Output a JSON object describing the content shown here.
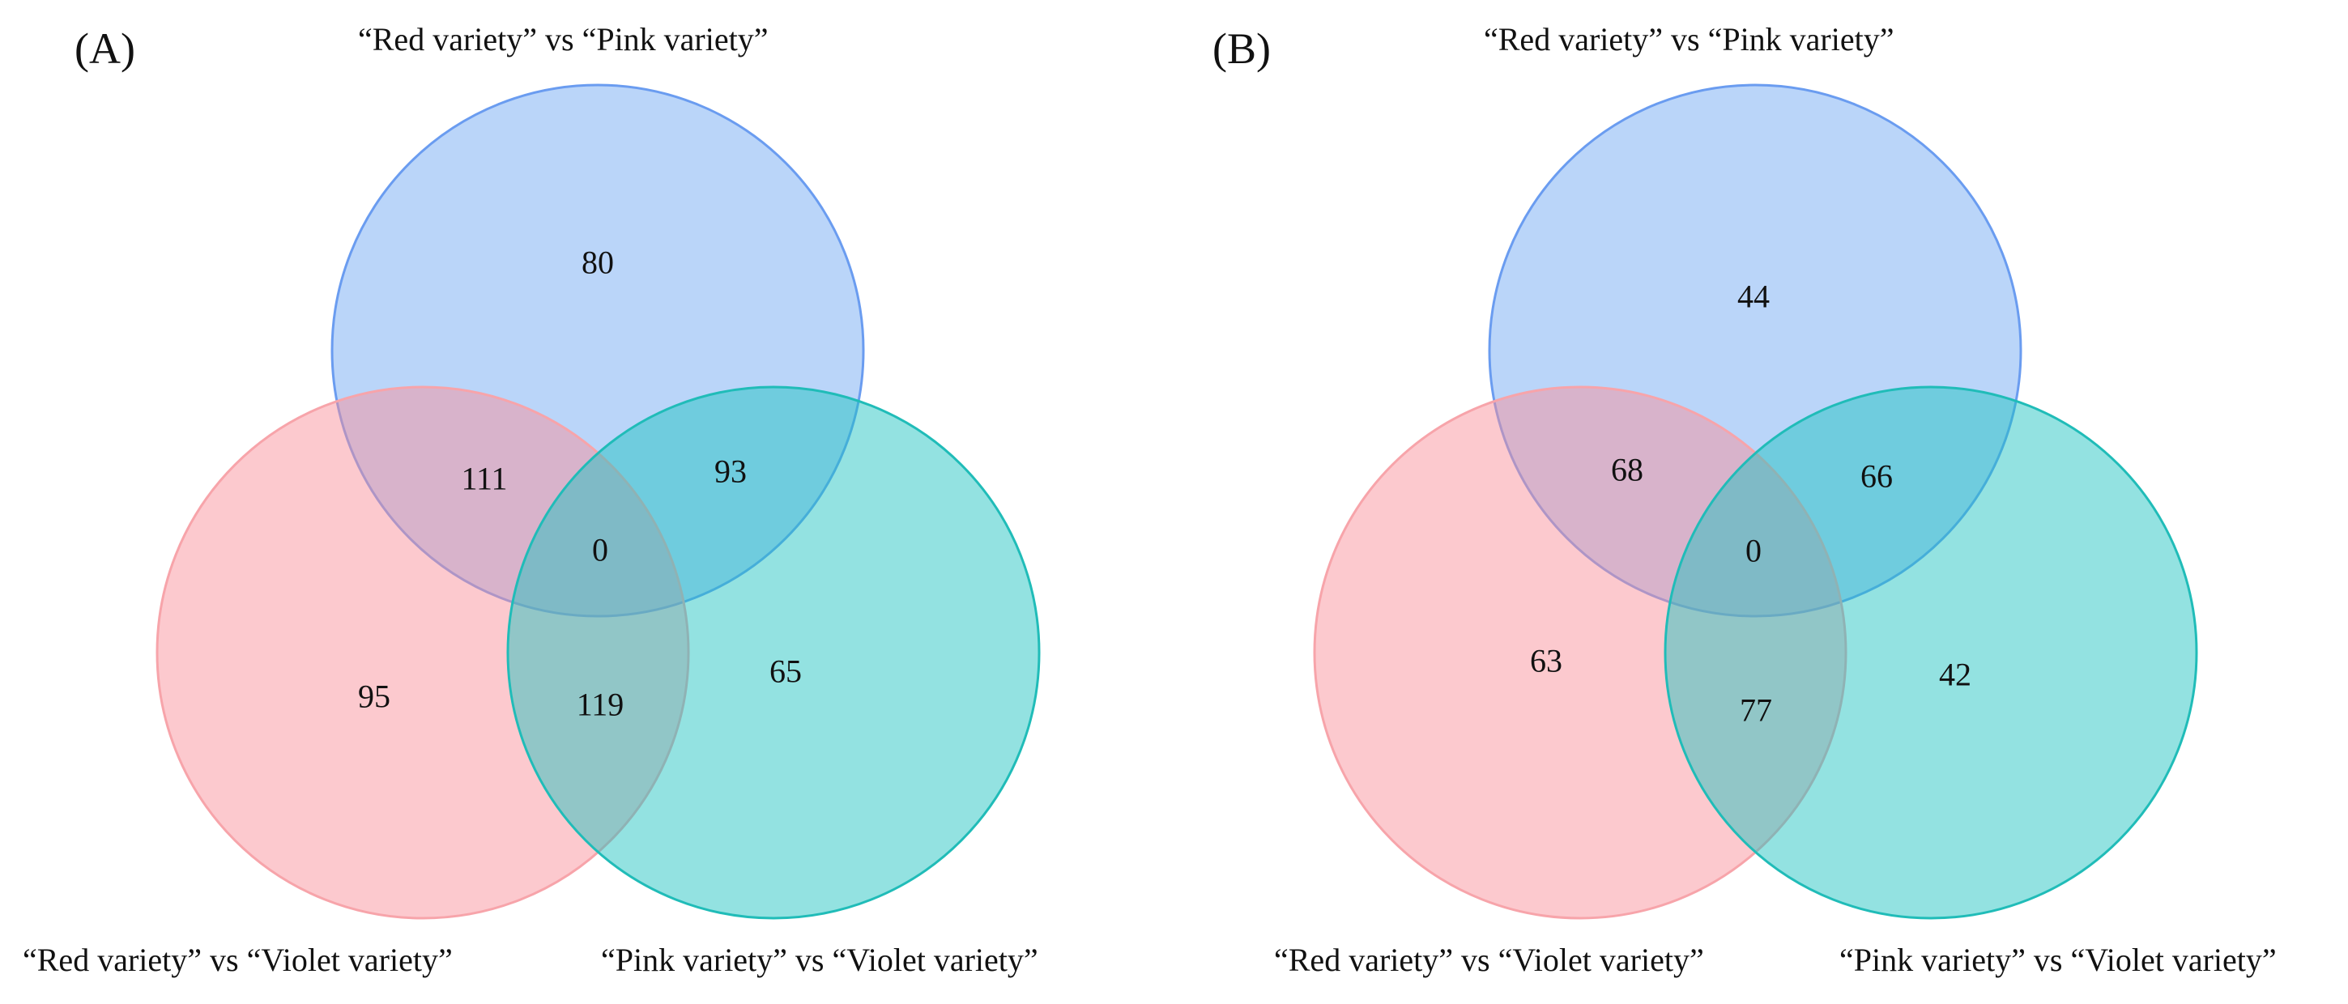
{
  "panels": [
    {
      "panel_label": "(A)",
      "sets": {
        "top": "“Red variety” vs “Pink variety”",
        "bottom_left": "“Red variety” vs “Violet variety”",
        "bottom_right": "“Pink variety” vs “Violet variety”"
      },
      "counts": {
        "top_only": "80",
        "top_and_left": "111",
        "top_and_right": "93",
        "all_three": "0",
        "left_only": "95",
        "left_and_right": "119",
        "right_only": "65"
      }
    },
    {
      "panel_label": "(B)",
      "sets": {
        "top": "“Red variety” vs “Pink variety”",
        "bottom_left": "“Red variety” vs “Violet variety”",
        "bottom_right": "“Pink variety” vs “Violet variety”"
      },
      "counts": {
        "top_only": "44",
        "top_and_left": "68",
        "top_and_right": "66",
        "all_three": "0",
        "left_only": "63",
        "left_and_right": "77",
        "right_only": "42"
      }
    }
  ],
  "colors": {
    "top_fill": "#6fa8f2",
    "top_stroke": "#6a9cf0",
    "left_fill": "#f98f98",
    "left_stroke": "#f7a4aa",
    "right_fill": "#1dc2c0",
    "right_stroke": "#20bcb8"
  }
}
